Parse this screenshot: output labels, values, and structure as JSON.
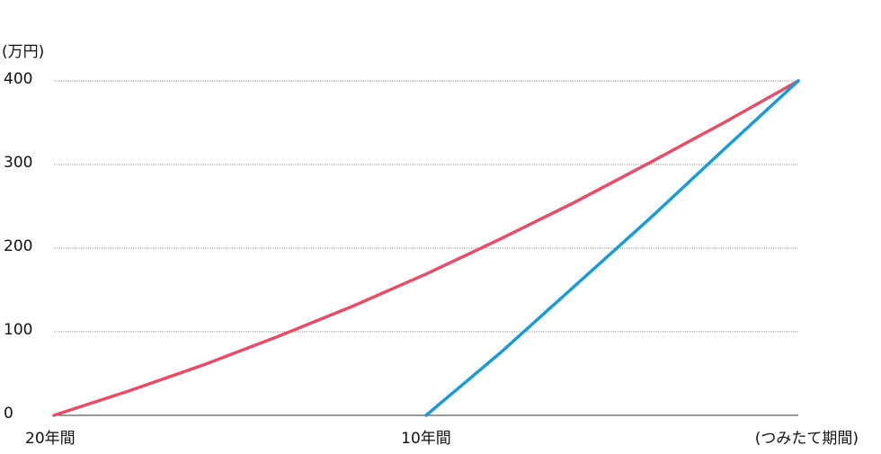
{
  "chart_data": {
    "type": "line",
    "y_label": "(万円)",
    "x_label": "(つみたて期間)",
    "xlim": [
      0,
      20
    ],
    "xticks": [
      {
        "value": 0,
        "label": "20年間"
      },
      {
        "value": 10,
        "label": "10年間"
      }
    ],
    "ylim": [
      0,
      400
    ],
    "yticks": [
      0,
      100,
      200,
      300,
      400
    ],
    "grid": true,
    "series": [
      {
        "color": "#e0506a",
        "x": [
          0,
          2,
          4,
          6,
          8,
          10,
          12,
          14,
          16,
          18,
          20
        ],
        "values": [
          0,
          29,
          60,
          94,
          130,
          169,
          211,
          255,
          302,
          350,
          400
        ]
      },
      {
        "color": "#1a9ad6",
        "x": [
          10,
          12,
          14,
          16,
          18,
          20
        ],
        "values": [
          0,
          75,
          155,
          235,
          318,
          400
        ]
      }
    ]
  }
}
